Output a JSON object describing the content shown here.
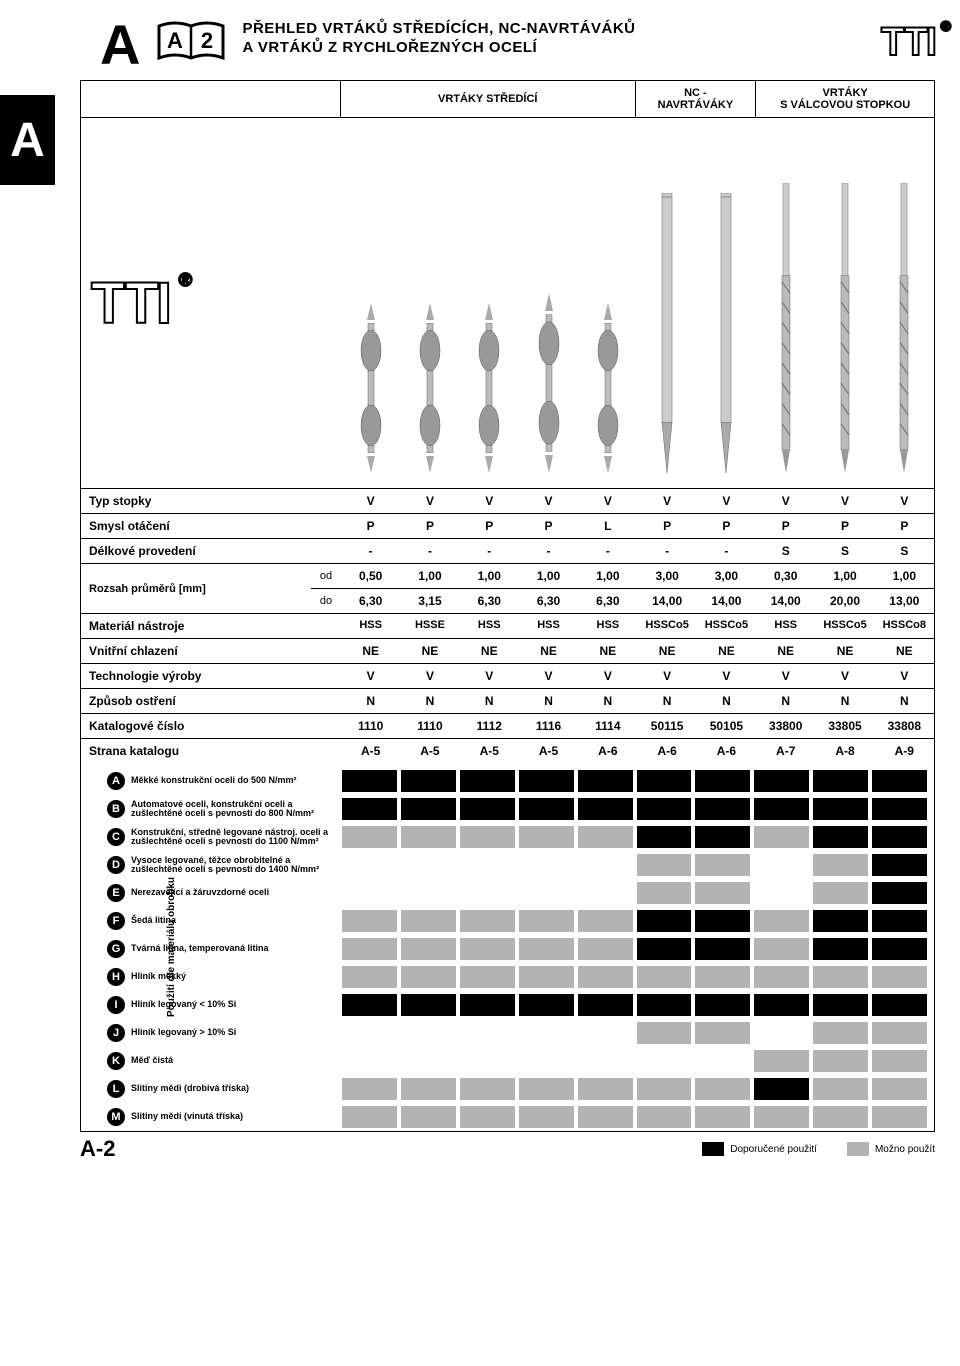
{
  "colors": {
    "black": "#000000",
    "grey": "#b3b3b3",
    "white": "#ffffff"
  },
  "header": {
    "section_letter": "A",
    "side_tab": "A",
    "book_label": "A 2",
    "title_line1": "PŘEHLED VRTÁKŮ STŘEDÍCÍCH, NC-NAVRTÁVÁKŮ",
    "title_line2": "A VRTÁKŮ Z RYCHLOŘEZNÝCH OCELÍ",
    "brand": "TTI",
    "reg": "®"
  },
  "categories": [
    {
      "label": "VRTÁKY STŘEDÍCÍ",
      "span": 5
    },
    {
      "label": "NC -\nNAVRTÁVÁKY",
      "span": 2
    },
    {
      "label": "VRTÁKY\nS VÁLCOVOU STOPKOU",
      "span": 3
    }
  ],
  "col_count": 10,
  "spec_rows": [
    {
      "label": "Typ stopky",
      "vals": [
        "V",
        "V",
        "V",
        "V",
        "V",
        "V",
        "V",
        "V",
        "V",
        "V"
      ]
    },
    {
      "label": "Smysl otáčení",
      "vals": [
        "P",
        "P",
        "P",
        "P",
        "L",
        "P",
        "P",
        "P",
        "P",
        "P"
      ]
    },
    {
      "label": "Délkové provedení",
      "vals": [
        "-",
        "-",
        "-",
        "-",
        "-",
        "-",
        "-",
        "S",
        "S",
        "S"
      ]
    }
  ],
  "range": {
    "label": "Rozsah průměrů [mm]",
    "od_label": "od",
    "do_label": "do",
    "od": [
      "0,50",
      "1,00",
      "1,00",
      "1,00",
      "1,00",
      "3,00",
      "3,00",
      "0,30",
      "1,00",
      "1,00"
    ],
    "do": [
      "6,30",
      "3,15",
      "6,30",
      "6,30",
      "6,30",
      "14,00",
      "14,00",
      "14,00",
      "20,00",
      "13,00"
    ]
  },
  "spec_rows2": [
    {
      "label": "Materiál nástroje",
      "vals": [
        "HSS",
        "HSSE",
        "HSS",
        "HSS",
        "HSS",
        "HSSCo5",
        "HSSCo5",
        "HSS",
        "HSSCo5",
        "HSSCo8"
      ],
      "small": true
    },
    {
      "label": "Vnitřní chlazení",
      "vals": [
        "NE",
        "NE",
        "NE",
        "NE",
        "NE",
        "NE",
        "NE",
        "NE",
        "NE",
        "NE"
      ]
    },
    {
      "label": "Technologie výroby",
      "vals": [
        "V",
        "V",
        "V",
        "V",
        "V",
        "V",
        "V",
        "V",
        "V",
        "V"
      ]
    },
    {
      "label": "Způsob ostření",
      "vals": [
        "N",
        "N",
        "N",
        "N",
        "N",
        "N",
        "N",
        "N",
        "N",
        "N"
      ]
    },
    {
      "label": "Katalogové číslo",
      "vals": [
        "1110",
        "1110",
        "1112",
        "1116",
        "1114",
        "50115",
        "50105",
        "33800",
        "33805",
        "33808"
      ]
    },
    {
      "label": "Strana katalogu",
      "vals": [
        "A-5",
        "A-5",
        "A-5",
        "A-5",
        "A-6",
        "A-6",
        "A-6",
        "A-7",
        "A-8",
        "A-9"
      ]
    }
  ],
  "app_side_label": "Použití dle materiálu obrobku",
  "app_rows": [
    {
      "k": "A",
      "lbl": "Měkké konstrukční oceli do 500 N/mm²",
      "c": [
        "b",
        "b",
        "b",
        "b",
        "b",
        "b",
        "b",
        "b",
        "b",
        "b"
      ]
    },
    {
      "k": "B",
      "lbl": "Automatové oceli, konstrukční oceli a zušlechtěné oceli s pevností do 800 N/mm²",
      "c": [
        "b",
        "b",
        "b",
        "b",
        "b",
        "b",
        "b",
        "b",
        "b",
        "b"
      ]
    },
    {
      "k": "C",
      "lbl": "Konstrukční, středně legované nástroj. oceli a zušlechtěné oceli s pevností do 1100 N/mm²",
      "c": [
        "g",
        "g",
        "g",
        "g",
        "g",
        "b",
        "b",
        "g",
        "b",
        "b"
      ]
    },
    {
      "k": "D",
      "lbl": "Vysoce legované, těžce obrobitelné a zušlechtěné oceli s pevností do 1400 N/mm²",
      "c": [
        "n",
        "n",
        "n",
        "n",
        "n",
        "g",
        "g",
        "n",
        "g",
        "b"
      ]
    },
    {
      "k": "E",
      "lbl": "Nerezavějící a žáruvzdorné oceli",
      "c": [
        "n",
        "n",
        "n",
        "n",
        "n",
        "g",
        "g",
        "n",
        "g",
        "b"
      ]
    },
    {
      "k": "F",
      "lbl": "Šedá litina",
      "c": [
        "g",
        "g",
        "g",
        "g",
        "g",
        "b",
        "b",
        "g",
        "b",
        "b"
      ]
    },
    {
      "k": "G",
      "lbl": "Tvárná litina, temperovaná litina",
      "c": [
        "g",
        "g",
        "g",
        "g",
        "g",
        "b",
        "b",
        "g",
        "b",
        "b"
      ]
    },
    {
      "k": "H",
      "lbl": "Hliník měkký",
      "c": [
        "g",
        "g",
        "g",
        "g",
        "g",
        "g",
        "g",
        "g",
        "g",
        "g"
      ]
    },
    {
      "k": "I",
      "lbl": "Hliník legovaný < 10% Si",
      "c": [
        "b",
        "b",
        "b",
        "b",
        "b",
        "b",
        "b",
        "b",
        "b",
        "b"
      ]
    },
    {
      "k": "J",
      "lbl": "Hliník legovaný > 10% Si",
      "c": [
        "n",
        "n",
        "n",
        "n",
        "n",
        "g",
        "g",
        "n",
        "g",
        "g"
      ]
    },
    {
      "k": "K",
      "lbl": "Měď čistá",
      "c": [
        "n",
        "n",
        "n",
        "n",
        "n",
        "n",
        "n",
        "g",
        "g",
        "g"
      ]
    },
    {
      "k": "L",
      "lbl": "Slitiny mědi (drobivá tříska)",
      "c": [
        "g",
        "g",
        "g",
        "g",
        "g",
        "g",
        "g",
        "b",
        "g",
        "g"
      ]
    },
    {
      "k": "M",
      "lbl": "Slitiny mědi (vinutá tříska)",
      "c": [
        "g",
        "g",
        "g",
        "g",
        "g",
        "g",
        "g",
        "g",
        "g",
        "g"
      ]
    }
  ],
  "footer": {
    "page": "A-2",
    "legend_rec": "Doporučené použití",
    "legend_opt": "Možno použít"
  }
}
